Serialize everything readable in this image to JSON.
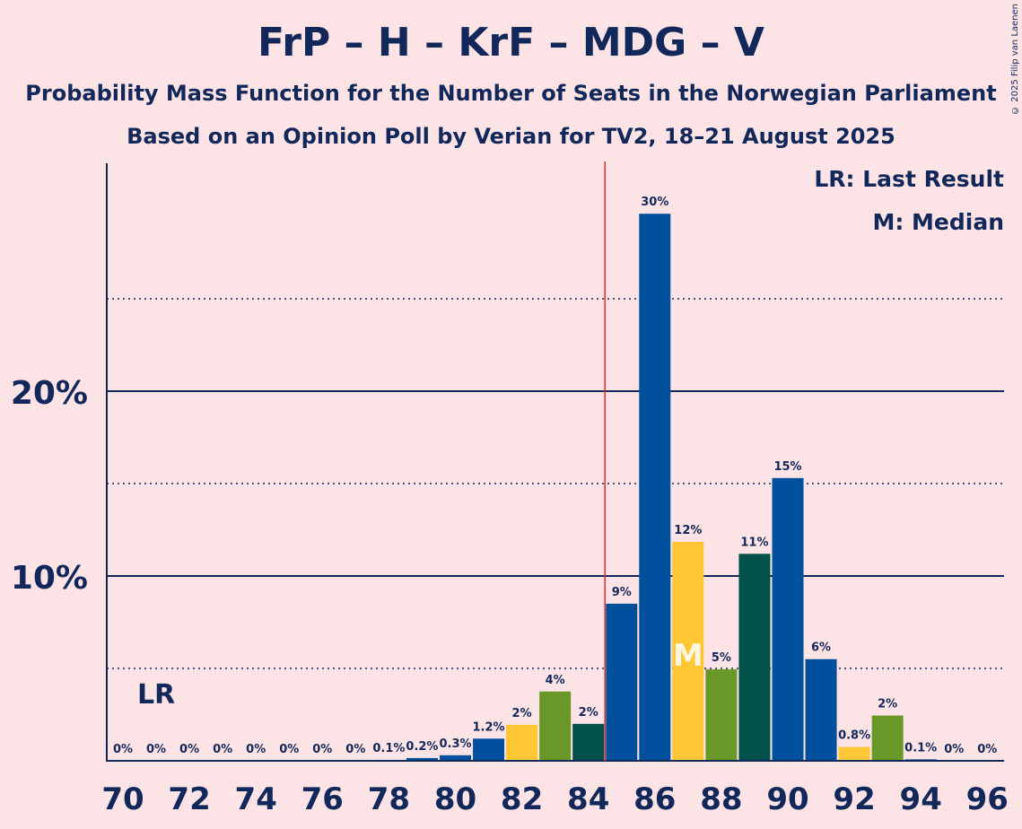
{
  "header": {
    "title": "FrP – H – KrF – MDG – V",
    "subtitle1": "Probability Mass Function for the Number of Seats in the Norwegian Parliament",
    "subtitle2": "Based on an Opinion Poll by Verian for TV2, 18–21 August 2025",
    "copyright": "© 2025 Filip van Laenen"
  },
  "legend": {
    "last_result": "LR: Last Result",
    "median": "M: Median"
  },
  "chart_data": {
    "type": "bar",
    "title": "FrP – H – KrF – MDG – V",
    "x": [
      70,
      71,
      72,
      73,
      74,
      75,
      76,
      77,
      78,
      79,
      80,
      81,
      82,
      83,
      84,
      85,
      86,
      87,
      88,
      89,
      90,
      91,
      92,
      93,
      94,
      95,
      96
    ],
    "values": [
      0,
      0,
      0,
      0,
      0,
      0,
      0,
      0,
      0.05,
      0.15,
      0.3,
      1.2,
      1.95,
      3.75,
      2.0,
      8.5,
      29.6,
      11.85,
      4.95,
      11.2,
      15.3,
      5.5,
      0.75,
      2.45,
      0.08,
      0,
      0
    ],
    "labels": [
      "0%",
      "0%",
      "0%",
      "0%",
      "0%",
      "0%",
      "0%",
      "0%",
      "0.1%",
      "0.2%",
      "0.3%",
      "1.2%",
      "2%",
      "4%",
      "2%",
      "9%",
      "30%",
      "12%",
      "5%",
      "11%",
      "15%",
      "6%",
      "0.8%",
      "2%",
      "0.1%",
      "0%",
      "0%"
    ],
    "colors": [
      "#00509E",
      "#00509E",
      "#00509E",
      "#00509E",
      "#00509E",
      "#00509E",
      "#00509E",
      "#00509E",
      "#00509E",
      "#00509E",
      "#00509E",
      "#00509E",
      "#FFC635",
      "#6A9828",
      "#01504A",
      "#00509E",
      "#00509E",
      "#FFC635",
      "#6A9828",
      "#01504A",
      "#00509E",
      "#00509E",
      "#FFC635",
      "#6A9828",
      "#00509E",
      "#00509E",
      "#00509E"
    ],
    "x_tick_labels": [
      "70",
      "72",
      "74",
      "76",
      "78",
      "80",
      "82",
      "84",
      "86",
      "88",
      "90",
      "92",
      "94",
      "96"
    ],
    "y_ticks_major": [
      {
        "value": 10,
        "label": "10%"
      },
      {
        "value": 20,
        "label": "20%"
      }
    ],
    "y_ticks_minor": [
      5,
      15,
      25
    ],
    "ylim": [
      0,
      32
    ],
    "last_result": {
      "seat": 71,
      "label": "LR"
    },
    "median": {
      "seat": 87,
      "label": "M"
    },
    "majority_line": 84.5
  }
}
